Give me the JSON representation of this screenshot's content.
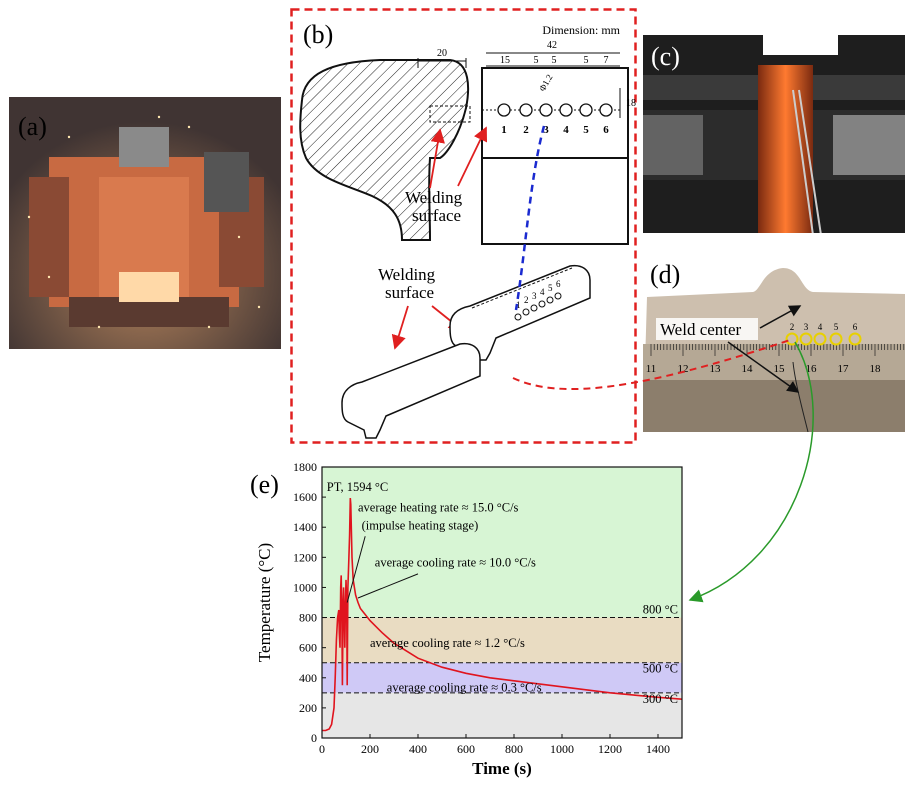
{
  "panels": {
    "a": "(a)",
    "b": "(b)",
    "c": "(c)",
    "d": "(d)",
    "e": "(e)"
  },
  "schematic": {
    "dimension_note": "Dimension: mm",
    "dim_20": "20",
    "dim_42": "42",
    "dim_15": "15",
    "dim_5a": "5",
    "dim_5b": "5",
    "dim_5c": "5",
    "dim_7": "7",
    "dim_18": "18",
    "hole_diameter": "Φ1.2",
    "hole_numbers": [
      "1",
      "2",
      "3",
      "4",
      "5",
      "6"
    ],
    "welding_surface_1": [
      "Welding",
      "surface"
    ],
    "welding_surface_2": [
      "Welding",
      "surface"
    ],
    "small_numbers": [
      "1",
      "2",
      "3",
      "4",
      "5",
      "6"
    ]
  },
  "photo_d": {
    "weld_center": "Weld center",
    "ruler_numbers": [
      "11",
      "12",
      "13",
      "14",
      "15",
      "16",
      "17",
      "18"
    ],
    "hole_numbers": [
      "2",
      "3",
      "4",
      "5",
      "6"
    ]
  },
  "colors": {
    "frame_red": "#e02020",
    "curve_red": "#e0141e",
    "zone_green": "#d7f5d4",
    "zone_tan": "#e9dcc2",
    "zone_purple": "#cfc9f6",
    "zone_grey": "#e6e6e6",
    "arrow_green": "#2a9a2a",
    "dash_blue": "#1a2ad0"
  },
  "chart_data": {
    "type": "line",
    "xlabel": "Time (s)",
    "ylabel": "Temperature (°C)",
    "xlim": [
      0,
      1500
    ],
    "ylim": [
      0,
      1800
    ],
    "x_ticks": [
      "0",
      "200",
      "400",
      "600",
      "800",
      "1000",
      "1200",
      "1400"
    ],
    "y_ticks": [
      "0",
      "200",
      "400",
      "600",
      "800",
      "1000",
      "1200",
      "1400",
      "1600",
      "1800"
    ],
    "zones": [
      {
        "from": 800,
        "to": 1800,
        "color": "#d7f5d4"
      },
      {
        "from": 500,
        "to": 800,
        "color": "#e9dcc2"
      },
      {
        "from": 300,
        "to": 500,
        "color": "#cfc9f6"
      },
      {
        "from": 0,
        "to": 300,
        "color": "#e6e6e6"
      }
    ],
    "threshold_labels": [
      "800 °C",
      "500 °C",
      "300 °C"
    ],
    "thresholds": [
      800,
      500,
      300
    ],
    "annotations": {
      "peak": "PT, 1594 °C",
      "heating": "average heating rate ≈ 15.0 °C/s",
      "impulse": "(impulse heating stage)",
      "cool1": "average cooling rate ≈ 10.0 °C/s",
      "cool2": "average cooling rate ≈ 1.2 °C/s",
      "cool3": "average cooling rate ≈ 0.3 °C/s"
    },
    "series": [
      {
        "x": [
          0,
          15,
          30,
          40,
          50,
          55,
          60,
          65,
          70,
          72,
          75,
          78,
          80,
          83,
          85,
          88,
          90,
          92,
          95,
          98,
          100,
          103,
          105,
          108,
          110,
          112,
          115,
          118,
          120,
          122,
          125,
          130,
          140,
          150,
          160,
          180,
          200,
          250,
          300,
          350,
          400,
          500,
          600,
          700,
          800,
          900,
          1000,
          1100,
          1200,
          1300,
          1400,
          1500
        ],
        "y": [
          50,
          50,
          60,
          90,
          200,
          400,
          650,
          800,
          850,
          700,
          600,
          1000,
          1080,
          800,
          350,
          900,
          1000,
          850,
          600,
          900,
          1050,
          900,
          350,
          1000,
          1100,
          1200,
          1350,
          1594,
          1550,
          1400,
          1200,
          1050,
          950,
          900,
          860,
          820,
          780,
          700,
          630,
          580,
          530,
          470,
          430,
          400,
          380,
          360,
          340,
          320,
          300,
          285,
          270,
          258
        ]
      }
    ]
  }
}
